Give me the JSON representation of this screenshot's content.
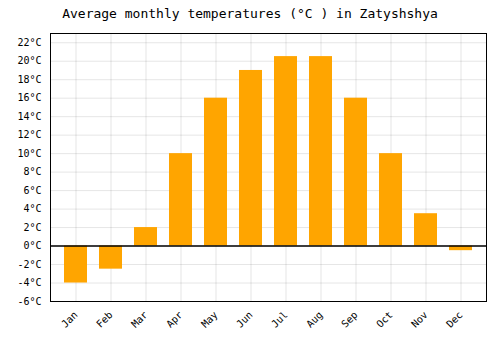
{
  "chart_data": {
    "type": "bar",
    "title": "Average monthly temperatures (°C ) in Zatyshshya",
    "categories": [
      "Jan",
      "Feb",
      "Mar",
      "Apr",
      "May",
      "Jun",
      "Jul",
      "Aug",
      "Sep",
      "Oct",
      "Nov",
      "Dec"
    ],
    "values": [
      -4,
      -2.5,
      2,
      10,
      16,
      19,
      20.5,
      20.5,
      16,
      10,
      3.5,
      -0.5
    ],
    "color": "#FFA500",
    "ylim": [
      -6,
      23
    ],
    "yticks": [
      {
        "value": -6,
        "label": "-6°C"
      },
      {
        "value": -4,
        "label": "-4°C"
      },
      {
        "value": -2,
        "label": "-2°C"
      },
      {
        "value": 0,
        "label": "0°C"
      },
      {
        "value": 2,
        "label": "2°C"
      },
      {
        "value": 4,
        "label": "4°C"
      },
      {
        "value": 6,
        "label": "6°C"
      },
      {
        "value": 8,
        "label": "8°C"
      },
      {
        "value": 10,
        "label": "10°C"
      },
      {
        "value": 12,
        "label": "12°C"
      },
      {
        "value": 14,
        "label": "14°C"
      },
      {
        "value": 16,
        "label": "16°C"
      },
      {
        "value": 18,
        "label": "18°C"
      },
      {
        "value": 20,
        "label": "20°C"
      },
      {
        "value": 22,
        "label": "22°C"
      }
    ],
    "grid": true
  }
}
